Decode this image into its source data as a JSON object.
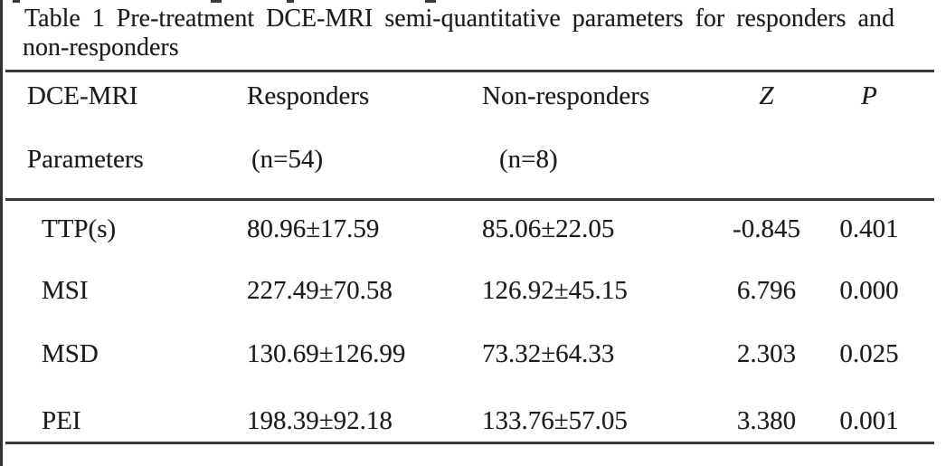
{
  "caption": {
    "line1": "Table 1 Pre-treatment DCE-MRI semi-quantitative parameters for responders and",
    "line2": "non-responders"
  },
  "table": {
    "header": {
      "col1_line1": "DCE-MRI",
      "col1_line2": "Parameters",
      "col2_line1": "Responders",
      "col2_line2": "(n=54)",
      "col3_line1": "Non-responders",
      "col3_line2": "(n=8)",
      "col4": "Z",
      "col5": "P"
    },
    "rows": [
      {
        "parameter": "TTP(s)",
        "responders": "80.96±17.59",
        "non_responders": "85.06±22.05",
        "z": "-0.845",
        "p": "0.401"
      },
      {
        "parameter": "MSI",
        "responders": "227.49±70.58",
        "non_responders": "126.92±45.15",
        "z": "6.796",
        "p": "0.000"
      },
      {
        "parameter": "MSD",
        "responders": "130.69±126.99",
        "non_responders": "73.32±64.33",
        "z": "2.303",
        "p": "0.025"
      },
      {
        "parameter": "PEI",
        "responders": "198.39±92.18",
        "non_responders": "133.76±57.05",
        "z": "3.380",
        "p": "0.001"
      }
    ]
  },
  "colors": {
    "background": "#ffffff",
    "text": "#1b1b20",
    "rule": "#39393c"
  }
}
